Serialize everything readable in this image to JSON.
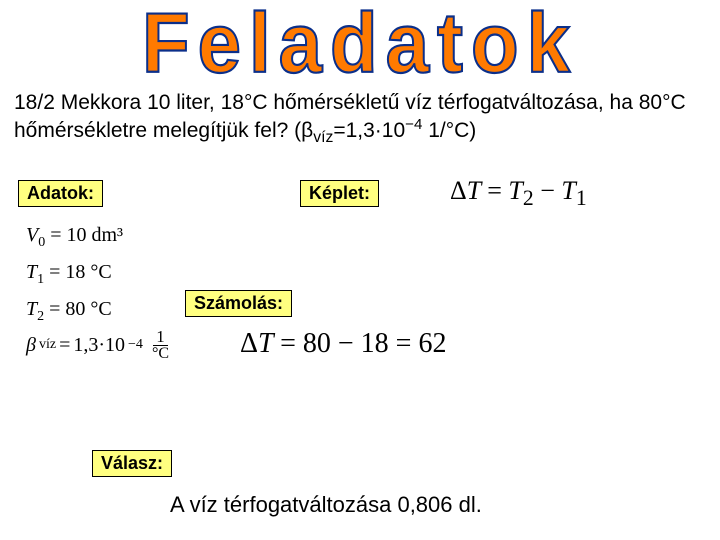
{
  "title": "Feladatok",
  "problem_html": "18/2 Mekkora 10 liter, 18°C hőmérsékletű víz térfogatváltozása, ha 80°C hőmérsékletre melegítjük fel? (β<sub>víz</sub>=1,3·10<sup>−4</sup> 1/°C)",
  "labels": {
    "adatok": "Adatok:",
    "keplet": "Képlet:",
    "szamolas": "Számolás:",
    "valasz": "Válasz:"
  },
  "formula_deltaT": "ΔT = T₂ − T₁",
  "adatok": {
    "v0": {
      "sym": "V",
      "sub": "0",
      "val": "10",
      "unit": "dm³"
    },
    "t1": {
      "sym": "T",
      "sub": "1",
      "val": "18",
      "unit": "°C"
    },
    "t2": {
      "sym": "T",
      "sub": "2",
      "val": "80",
      "unit": "°C"
    },
    "beta": {
      "sym": "β",
      "sub": "víz",
      "val": "1,3·10",
      "exp": "−4",
      "frac_num": "1",
      "frac_den": "°C"
    }
  },
  "calc": "ΔT = 80 − 18 = 62",
  "answer": "A víz térfogatváltozása 0,806 dl.",
  "colors": {
    "title_fill": "#ff7a00",
    "title_stroke": "#0b2f8a",
    "label_bg": "#ffff80",
    "label_border": "#000000",
    "text": "#000000",
    "background": "#ffffff"
  },
  "typography": {
    "title_fontsize": 78,
    "problem_fontsize": 21,
    "label_fontsize": 18,
    "formula_fontsize": 26,
    "adatok_fontsize": 20,
    "calc_fontsize": 28,
    "answer_fontsize": 22
  }
}
